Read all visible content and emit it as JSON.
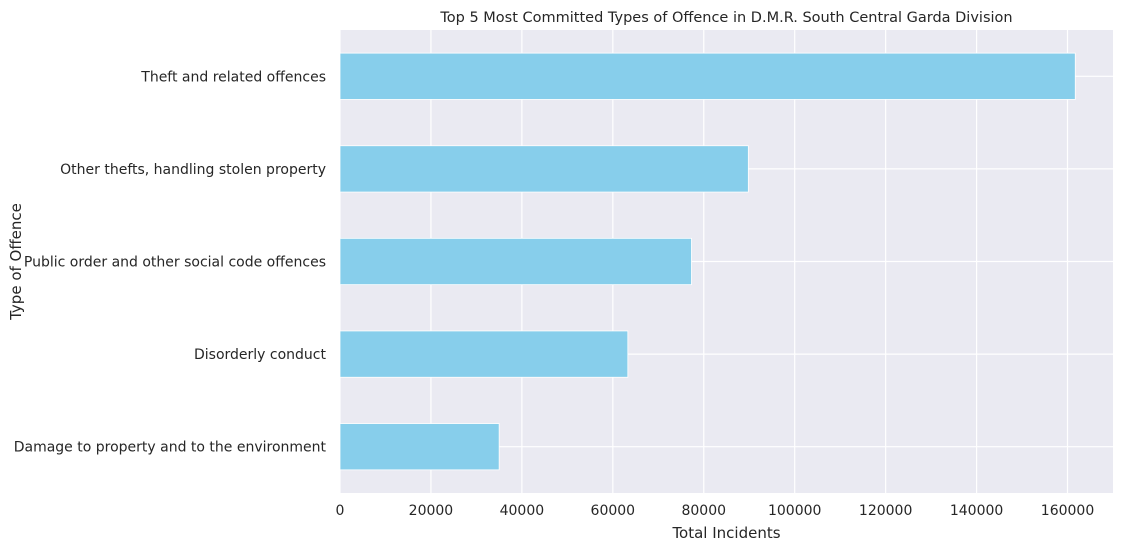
{
  "chart_data": {
    "type": "bar",
    "orientation": "horizontal",
    "title": "Top 5 Most Committed Types of Offence in D.M.R. South Central Garda Division",
    "xlabel": "Total Incidents",
    "ylabel": "Type of Offence",
    "categories": [
      "Theft and related offences",
      "Other thefts, handling stolen property",
      "Public order and other social code offences",
      "Disorderly conduct",
      "Damage to property and to the environment"
    ],
    "values": [
      161700,
      89800,
      77300,
      63300,
      35000
    ],
    "xlim": [
      0,
      170000
    ],
    "xticks": [
      0,
      20000,
      40000,
      60000,
      80000,
      100000,
      120000,
      140000,
      160000
    ],
    "xtick_labels": [
      "0",
      "20000",
      "40000",
      "60000",
      "80000",
      "100000",
      "120000",
      "140000",
      "160000"
    ],
    "grid": true,
    "colors": {
      "bar": "#87CEEB",
      "plot_background": "#EAEAF2",
      "grid": "#FFFFFF",
      "text": "#262626"
    }
  }
}
